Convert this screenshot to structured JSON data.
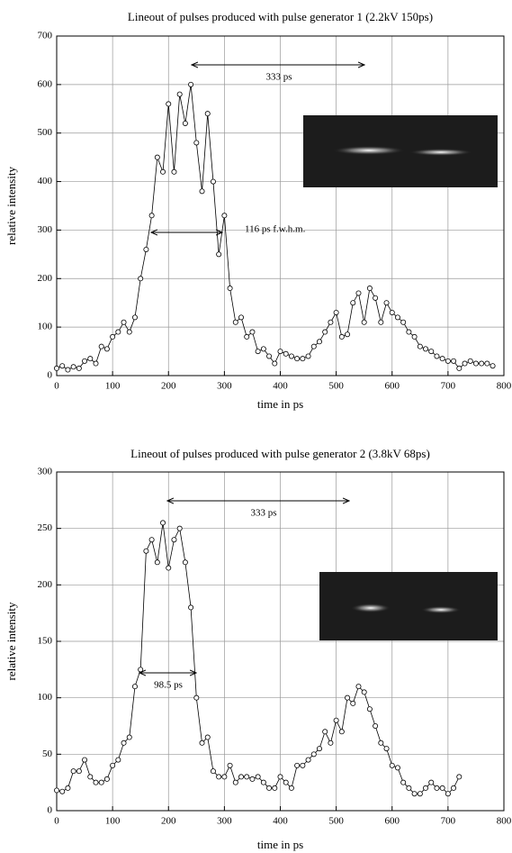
{
  "chart_data": [
    {
      "type": "line",
      "title": "Lineout of pulses produced with pulse generator 1 (2.2kV 150ps)",
      "x_label": "time in ps",
      "y_label": "relative intensity",
      "x": [
        0,
        10,
        20,
        30,
        40,
        50,
        60,
        70,
        80,
        90,
        100,
        110,
        120,
        130,
        140,
        150,
        160,
        170,
        180,
        190,
        200,
        210,
        220,
        230,
        240,
        250,
        260,
        270,
        280,
        290,
        300,
        310,
        320,
        330,
        340,
        350,
        360,
        370,
        380,
        390,
        400,
        410,
        420,
        430,
        440,
        450,
        460,
        470,
        480,
        490,
        500,
        510,
        520,
        530,
        540,
        550,
        560,
        570,
        580,
        590,
        600,
        610,
        620,
        630,
        640,
        650,
        660,
        670,
        680,
        690,
        700,
        710,
        720,
        730,
        740,
        750,
        760,
        770,
        780
      ],
      "series": [
        {
          "color": "#000000",
          "values": [
            15,
            20,
            12,
            18,
            15,
            30,
            35,
            25,
            60,
            55,
            80,
            90,
            110,
            90,
            120,
            200,
            260,
            330,
            450,
            420,
            560,
            420,
            580,
            520,
            600,
            480,
            380,
            540,
            400,
            250,
            330,
            180,
            110,
            120,
            80,
            90,
            50,
            55,
            40,
            25,
            50,
            45,
            40,
            35,
            35,
            40,
            60,
            70,
            90,
            110,
            130,
            80,
            85,
            150,
            170,
            110,
            180,
            160,
            110,
            150,
            130,
            120,
            110,
            90,
            80,
            60,
            55,
            50,
            40,
            35,
            30,
            30,
            15,
            25,
            30,
            25,
            25,
            25,
            20
          ]
        }
      ],
      "xlim": [
        0,
        800
      ],
      "ylim": [
        0,
        700
      ],
      "xticks": [
        0,
        100,
        200,
        300,
        400,
        500,
        600,
        700,
        800
      ],
      "yticks": [
        0,
        100,
        200,
        300,
        400,
        500,
        600,
        700
      ],
      "grid": true,
      "annotations": [
        "333 ps",
        "116 ps f.w.h.m."
      ]
    },
    {
      "type": "line",
      "title": "Lineout of pulses produced with pulse generator 2 (3.8kV 68ps)",
      "x_label": "time in ps",
      "y_label": "relative intensity",
      "x": [
        0,
        10,
        20,
        30,
        40,
        50,
        60,
        70,
        80,
        90,
        100,
        110,
        120,
        130,
        140,
        150,
        160,
        170,
        180,
        190,
        200,
        210,
        220,
        230,
        240,
        250,
        260,
        270,
        280,
        290,
        300,
        310,
        320,
        330,
        340,
        350,
        360,
        370,
        380,
        390,
        400,
        410,
        420,
        430,
        440,
        450,
        460,
        470,
        480,
        490,
        500,
        510,
        520,
        530,
        540,
        550,
        560,
        570,
        580,
        590,
        600,
        610,
        620,
        630,
        640,
        650,
        660,
        670,
        680,
        690,
        700,
        710,
        720
      ],
      "series": [
        {
          "color": "#000000",
          "values": [
            18,
            17,
            20,
            35,
            35,
            45,
            30,
            25,
            25,
            28,
            40,
            45,
            60,
            65,
            110,
            125,
            230,
            240,
            220,
            255,
            215,
            240,
            250,
            220,
            180,
            100,
            60,
            65,
            35,
            30,
            30,
            40,
            25,
            30,
            30,
            28,
            30,
            25,
            20,
            20,
            30,
            25,
            20,
            40,
            40,
            45,
            50,
            55,
            70,
            60,
            80,
            70,
            100,
            95,
            110,
            105,
            90,
            75,
            60,
            55,
            40,
            38,
            25,
            20,
            15,
            15,
            20,
            25,
            20,
            20,
            15,
            20,
            30
          ]
        }
      ],
      "xlim": [
        0,
        800
      ],
      "ylim": [
        0,
        300
      ],
      "xticks": [
        0,
        100,
        200,
        300,
        400,
        500,
        600,
        700,
        800
      ],
      "yticks": [
        0,
        50,
        100,
        150,
        200,
        250,
        300
      ],
      "grid": true,
      "annotations": [
        "333 ps",
        "98.5 ps"
      ]
    }
  ]
}
